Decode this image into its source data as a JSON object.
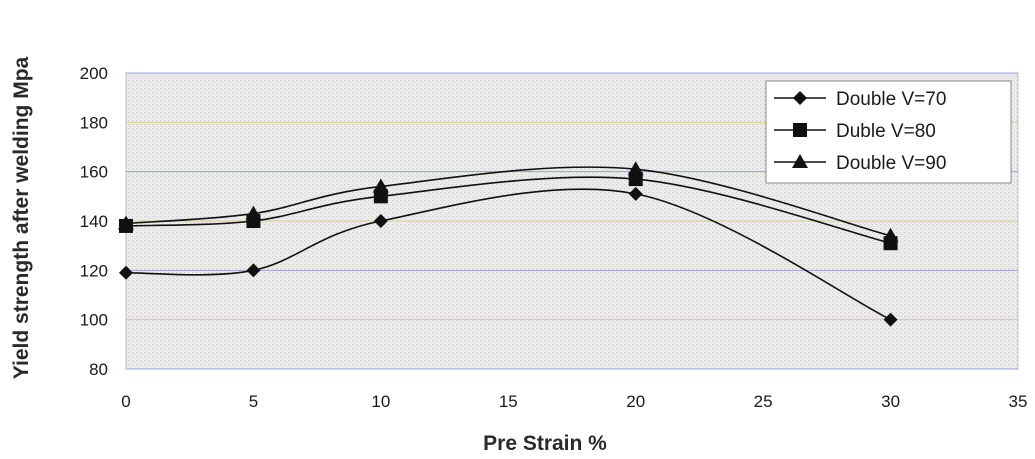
{
  "chart_data": {
    "type": "line",
    "title": "",
    "xlabel": "Pre Strain %",
    "ylabel": "Yield strength after welding Mpa",
    "xlim": [
      0,
      35
    ],
    "ylim": [
      80,
      200
    ],
    "xticks": [
      "0",
      "5",
      "10",
      "15",
      "20",
      "25",
      "30",
      "35"
    ],
    "yticks": [
      "80",
      "100",
      "120",
      "140",
      "160",
      "180",
      "200"
    ],
    "x": [
      0,
      5,
      10,
      20,
      30
    ],
    "series": [
      {
        "name": "Double V=70",
        "marker": "diamond",
        "values": [
          119,
          120,
          140,
          151,
          100
        ]
      },
      {
        "name": "Duble V=80",
        "marker": "square",
        "values": [
          138,
          140,
          150,
          157,
          131
        ]
      },
      {
        "name": "Double V=90",
        "marker": "triangle",
        "values": [
          139,
          143,
          154,
          161,
          134
        ]
      }
    ],
    "smooth": true,
    "grid": true,
    "legend_position": "top-right",
    "colors": {
      "line": "#111111",
      "plot_bg": "#e8e8e8",
      "grid": "#9aa4d8"
    }
  }
}
